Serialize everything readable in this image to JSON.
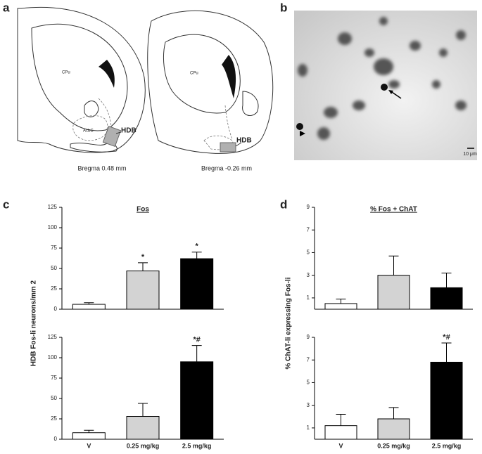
{
  "panel_labels": [
    "a",
    "b",
    "c",
    "d"
  ],
  "atlas": {
    "left": {
      "region_labels": [
        "CPu",
        "AcbC"
      ],
      "target": "HDB",
      "caption": "Bregma 0.48 mm"
    },
    "right": {
      "region_labels": [
        "CPu"
      ],
      "target": "HDB",
      "caption": "Bregma -0.26 mm"
    }
  },
  "micrograph": {
    "scale_bar": "10 μm"
  },
  "chart_data": [
    {
      "type": "bar",
      "title": "Fos",
      "ylabel": "HDB Fos-li neurons/mm 2",
      "categories": [
        null,
        null,
        null
      ],
      "values": [
        6,
        47,
        62
      ],
      "errors": [
        2,
        10,
        8
      ],
      "annotations": [
        null,
        "*",
        "*"
      ],
      "colors": [
        "#ffffff",
        "#d3d3d3",
        "#000000"
      ],
      "ylim": [
        0,
        125
      ],
      "yticks": [
        0,
        25,
        50,
        75,
        100,
        125
      ]
    },
    {
      "type": "bar",
      "categories": [
        "V",
        "0.25 mg/kg",
        "2.5 mg/kg"
      ],
      "values": [
        8,
        28,
        95
      ],
      "errors": [
        3,
        16,
        20
      ],
      "annotations": [
        null,
        null,
        "*#"
      ],
      "colors": [
        "#ffffff",
        "#d3d3d3",
        "#000000"
      ],
      "ylim": [
        0,
        125
      ],
      "yticks": [
        0,
        25,
        50,
        75,
        100,
        125
      ]
    },
    {
      "type": "bar",
      "title": "% Fos + ChAT",
      "ylabel": "% ChAT-li expressing Fos-li",
      "categories": [
        null,
        null,
        null
      ],
      "values": [
        0.5,
        3.0,
        1.9
      ],
      "errors": [
        0.4,
        1.7,
        1.3
      ],
      "annotations": [
        null,
        null,
        null
      ],
      "colors": [
        "#ffffff",
        "#d3d3d3",
        "#000000"
      ],
      "ylim": [
        0,
        9
      ],
      "yticks": [
        1,
        3,
        5,
        7,
        9
      ]
    },
    {
      "type": "bar",
      "categories": [
        "V",
        "0.25 mg/kg",
        "2.5 mg/kg"
      ],
      "values": [
        1.2,
        1.8,
        6.8
      ],
      "errors": [
        1.0,
        1.0,
        1.7
      ],
      "annotations": [
        null,
        null,
        "*#"
      ],
      "colors": [
        "#ffffff",
        "#d3d3d3",
        "#000000"
      ],
      "ylim": [
        0,
        9
      ],
      "yticks": [
        1,
        3,
        5,
        7,
        9
      ]
    }
  ]
}
